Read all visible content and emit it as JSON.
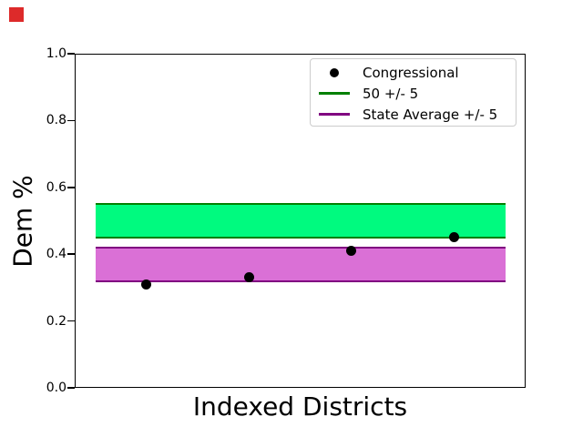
{
  "decorations": {
    "corner_square_color": "#dd2a2a"
  },
  "chart_data": {
    "type": "scatter",
    "title": "",
    "xlabel": "Indexed Districts",
    "ylabel": "Dem %",
    "xlim": [
      0.3,
      4.7
    ],
    "ylim": [
      0.0,
      1.0
    ],
    "yticks": [
      0.0,
      0.2,
      0.4,
      0.6,
      0.8,
      1.0
    ],
    "xticks": [],
    "grid": false,
    "legend_position": "upper right",
    "series": [
      {
        "slug": "congressional",
        "name": "Congressional",
        "type": "scatter",
        "marker": "circle",
        "color": "#000000",
        "x": [
          1,
          2,
          3,
          4
        ],
        "y": [
          0.31,
          0.33,
          0.41,
          0.45
        ]
      },
      {
        "slug": "fifty-band",
        "name": "50 +/- 5",
        "type": "band",
        "low": 0.45,
        "high": 0.55,
        "x_range": [
          0.5,
          4.5
        ],
        "fill_color": "#00fa7f",
        "edge_color": "#008000"
      },
      {
        "slug": "state-average-band",
        "name": "State Average +/- 5",
        "type": "band",
        "low": 0.32,
        "high": 0.42,
        "x_range": [
          0.5,
          4.5
        ],
        "fill_color": "#da70d6",
        "edge_color": "#800080"
      }
    ]
  }
}
